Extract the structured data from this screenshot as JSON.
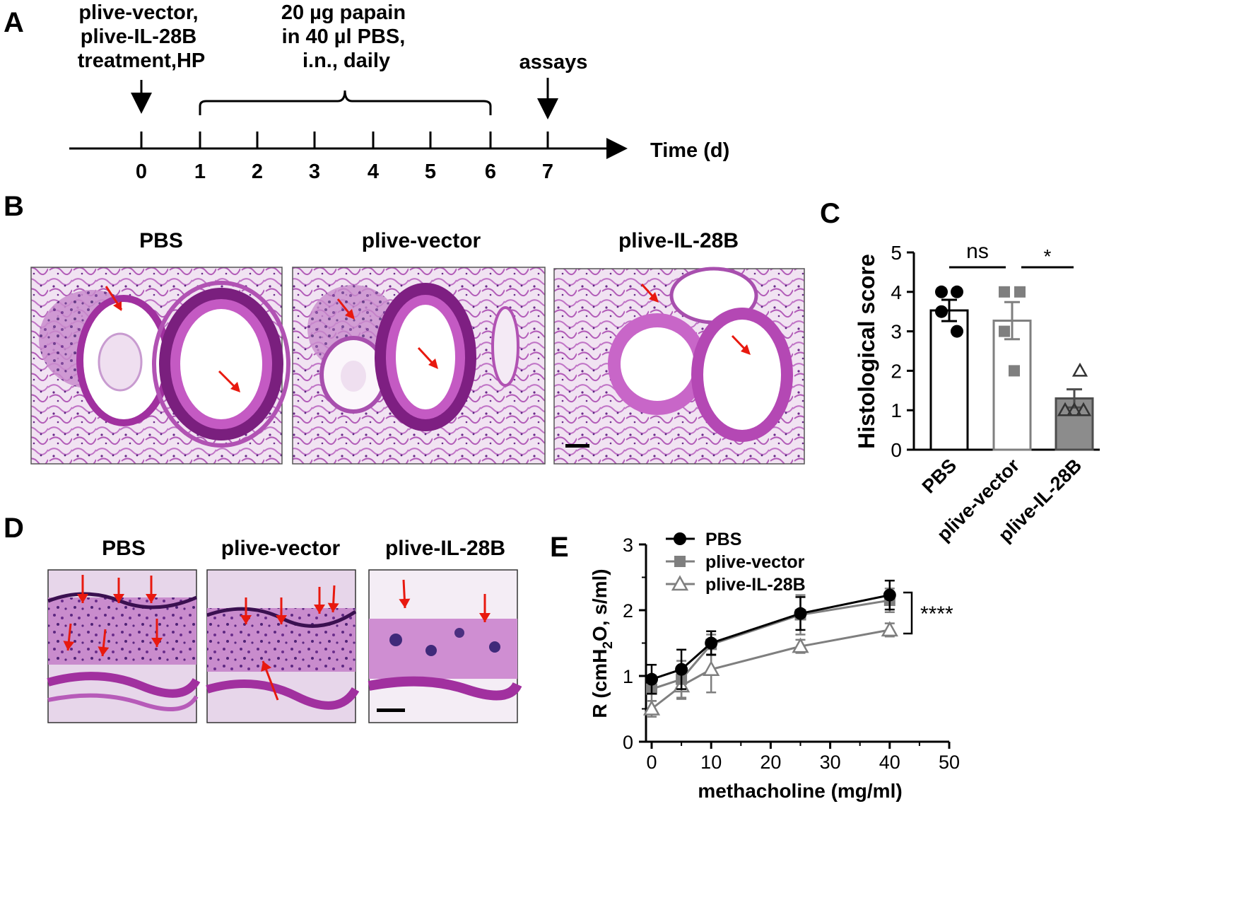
{
  "panel_a": {
    "letter": "A",
    "annot_treatment": [
      "plive-vector,",
      "plive-IL-28B",
      "treatment,HP"
    ],
    "annot_papain": [
      "20 µg papain",
      "in 40 µl PBS,",
      "i.n., daily"
    ],
    "annot_assays": "assays",
    "axis_label": "Time (d)",
    "ticks": [
      "0",
      "1",
      "2",
      "3",
      "4",
      "5",
      "6",
      "7"
    ]
  },
  "panel_b": {
    "letter": "B",
    "images": [
      {
        "label": "PBS"
      },
      {
        "label": "plive-vector"
      },
      {
        "label": "plive-IL-28B"
      }
    ]
  },
  "panel_d": {
    "letter": "D",
    "images": [
      {
        "label": "PBS"
      },
      {
        "label": "plive-vector"
      },
      {
        "label": "plive-IL-28B"
      }
    ]
  },
  "colors": {
    "tissue_pink": "#d9a6dc",
    "tissue_purple": "#a3389f",
    "tissue_dark": "#5a1460",
    "arrow_red": "#e8190f",
    "series_black": "#000000",
    "series_gray": "#7f7f7f",
    "bar_dark_fill": "#8c8c8c"
  },
  "chart_data": [
    {
      "panel": "C",
      "type": "bar",
      "ylabel": "Histological score",
      "ylim": [
        0,
        5
      ],
      "yticks": [
        "0",
        "1",
        "2",
        "3",
        "4",
        "5"
      ],
      "categories": [
        "PBS",
        "plive-vector",
        "plive-IL-28B"
      ],
      "values": [
        3.53,
        3.27,
        1.3
      ],
      "errors": [
        0.27,
        0.47,
        0.23
      ],
      "points": [
        [
          4,
          4,
          3.5,
          3
        ],
        [
          4,
          4,
          3,
          2
        ],
        [
          2,
          1,
          1,
          1
        ]
      ],
      "significance": [
        {
          "pair": [
            0,
            1
          ],
          "label": "ns"
        },
        {
          "pair": [
            1,
            2
          ],
          "label": "*"
        }
      ]
    },
    {
      "panel": "E",
      "type": "line",
      "xlabel": "methacholine (mg/ml)",
      "ylabel": "R (cmH",
      "ylabel_sub": "2",
      "ylabel_tail": "O, s/ml)",
      "xlim": [
        0,
        50
      ],
      "ylim": [
        0,
        3
      ],
      "xticks": [
        "0",
        "10",
        "20",
        "30",
        "40",
        "50"
      ],
      "yticks": [
        "0",
        "1",
        "2",
        "3"
      ],
      "x": [
        0,
        5,
        10,
        25,
        40
      ],
      "legend_position": "top-left",
      "series": [
        {
          "name": "PBS",
          "values": [
            0.95,
            1.1,
            1.5,
            1.95,
            2.23
          ],
          "errors": [
            0.22,
            0.3,
            0.18,
            0.25,
            0.22
          ]
        },
        {
          "name": "plive-vector",
          "values": [
            0.8,
            0.95,
            1.48,
            1.93,
            2.15
          ],
          "errors": [
            0.18,
            0.28,
            0.15,
            0.3,
            0.18
          ]
        },
        {
          "name": "plive-IL-28B",
          "values": [
            0.5,
            0.85,
            1.1,
            1.45,
            1.7
          ],
          "errors": [
            0.12,
            0.2,
            0.35,
            0.1,
            0.1
          ]
        }
      ],
      "significance": "****"
    }
  ]
}
